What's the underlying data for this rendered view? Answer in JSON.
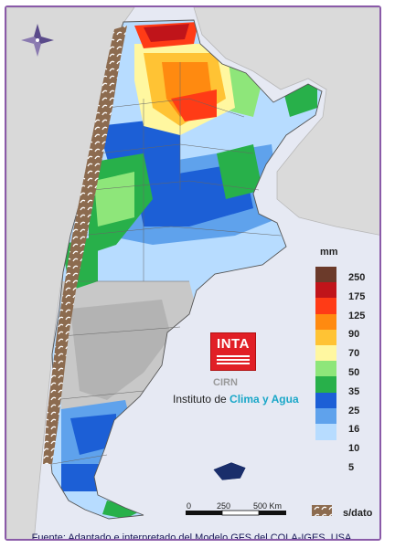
{
  "legend": {
    "unit": "mm",
    "items": [
      {
        "label": "250",
        "color": "#6b3a2a"
      },
      {
        "label": "175",
        "color": "#c0141a"
      },
      {
        "label": "125",
        "color": "#ff3b16"
      },
      {
        "label": "90",
        "color": "#ff8a10"
      },
      {
        "label": "70",
        "color": "#ffc334"
      },
      {
        "label": "50",
        "color": "#fff7a0"
      },
      {
        "label": "35",
        "color": "#8ee67a"
      },
      {
        "label": "25",
        "color": "#28b04a"
      },
      {
        "label": "16",
        "color": "#1c5fd6"
      },
      {
        "label": "10",
        "color": "#5fa2ec"
      },
      {
        "label": "5",
        "color": "#b7dcff"
      }
    ],
    "nodata_label": "s/dato",
    "nodata_color": "#8c6b4f"
  },
  "logo": {
    "brand": "INTA",
    "sub": "CIRN",
    "institute_prefix": "Instituto de ",
    "institute_accent": "Clima y Agua"
  },
  "scale": {
    "ticks": [
      "0",
      "250",
      "500 Km"
    ]
  },
  "compass_icon": "compass-rose-icon",
  "source": "Fuente: Adaptado e interpretado del Modelo GFS del COLA-IGES, USA."
}
